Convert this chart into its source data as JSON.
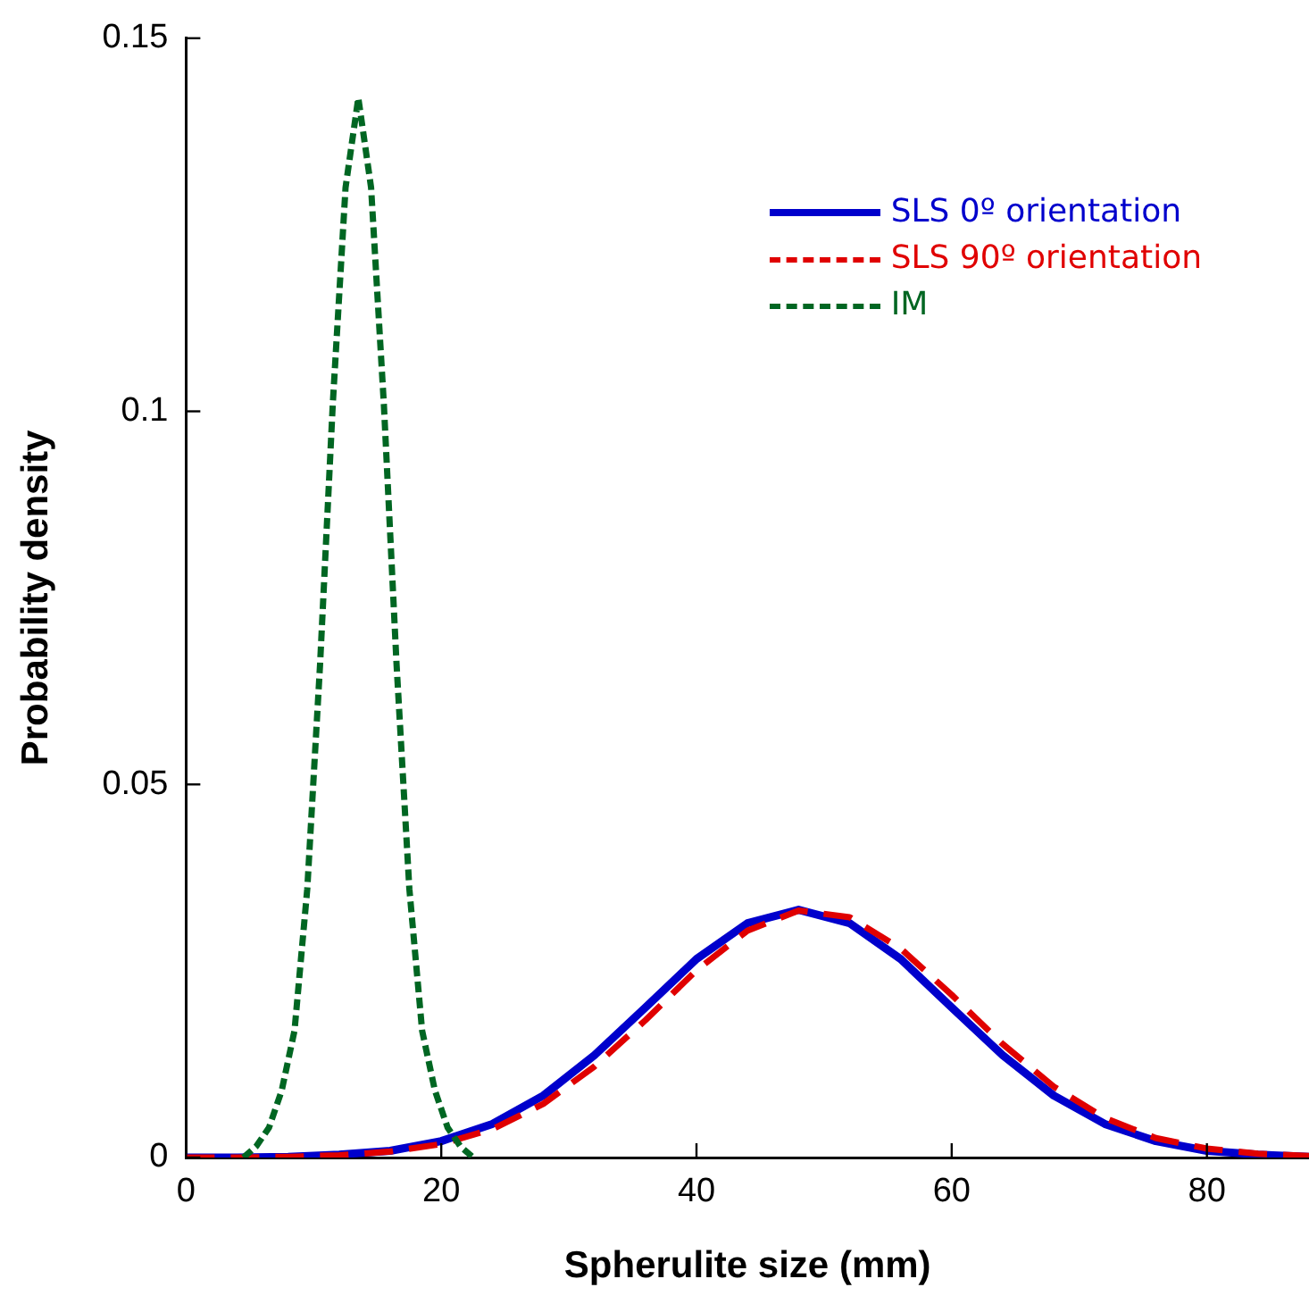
{
  "chart_data": {
    "type": "line",
    "xlabel": "Spherulite size (mm)",
    "ylabel": "Probability density",
    "xlim": [
      0,
      88
    ],
    "xticks": [
      0,
      20,
      40,
      60,
      80
    ],
    "ylim": [
      0,
      0.15
    ],
    "yticks": [
      0,
      0.05,
      0.1,
      0.15
    ],
    "grid": false,
    "legend": "top right",
    "marker": "none",
    "series": [
      {
        "name": "SLS 0º orientation",
        "color": "#0000cc",
        "line_style": "solid",
        "x": [
          0,
          4,
          8,
          12,
          16,
          20,
          24,
          28,
          32,
          36,
          40,
          44,
          48,
          52,
          56,
          60,
          64,
          68,
          72,
          76,
          80,
          84,
          88
        ],
        "values": [
          0,
          0,
          0.0001,
          0.0004,
          0.0009,
          0.0022,
          0.0045,
          0.0083,
          0.0137,
          0.0201,
          0.0266,
          0.0314,
          0.0332,
          0.0314,
          0.0266,
          0.0201,
          0.0137,
          0.0083,
          0.0045,
          0.0022,
          0.0009,
          0.0004,
          0.0001
        ]
      },
      {
        "name": "SLS 90º orientation",
        "color": "#e00000",
        "line_style": "dashed",
        "x": [
          0,
          4,
          8,
          12,
          16,
          20,
          24,
          28,
          32,
          36,
          40,
          44,
          48,
          52,
          56,
          60,
          64,
          68,
          72,
          76,
          80,
          84,
          88
        ],
        "values": [
          0,
          0,
          0.0001,
          0.0003,
          0.0008,
          0.0018,
          0.0038,
          0.0072,
          0.0122,
          0.0184,
          0.0251,
          0.0304,
          0.0331,
          0.0322,
          0.028,
          0.0218,
          0.0152,
          0.0095,
          0.0053,
          0.0026,
          0.0012,
          0.0005,
          0.0002
        ]
      },
      {
        "name": "IM",
        "color": "#006622",
        "line_style": "dotted",
        "x": [
          4.5,
          5.5,
          6.5,
          7.5,
          8.5,
          9.5,
          10.5,
          11.5,
          12.5,
          13.5,
          14.5,
          15.5,
          16.5,
          17.5,
          18.5,
          19.5,
          20.5,
          21.5,
          22.5
        ],
        "values": [
          0,
          0.0015,
          0.004,
          0.009,
          0.017,
          0.036,
          0.066,
          0.101,
          0.13,
          0.142,
          0.13,
          0.101,
          0.066,
          0.036,
          0.017,
          0.009,
          0.004,
          0.0015,
          0
        ]
      }
    ]
  }
}
